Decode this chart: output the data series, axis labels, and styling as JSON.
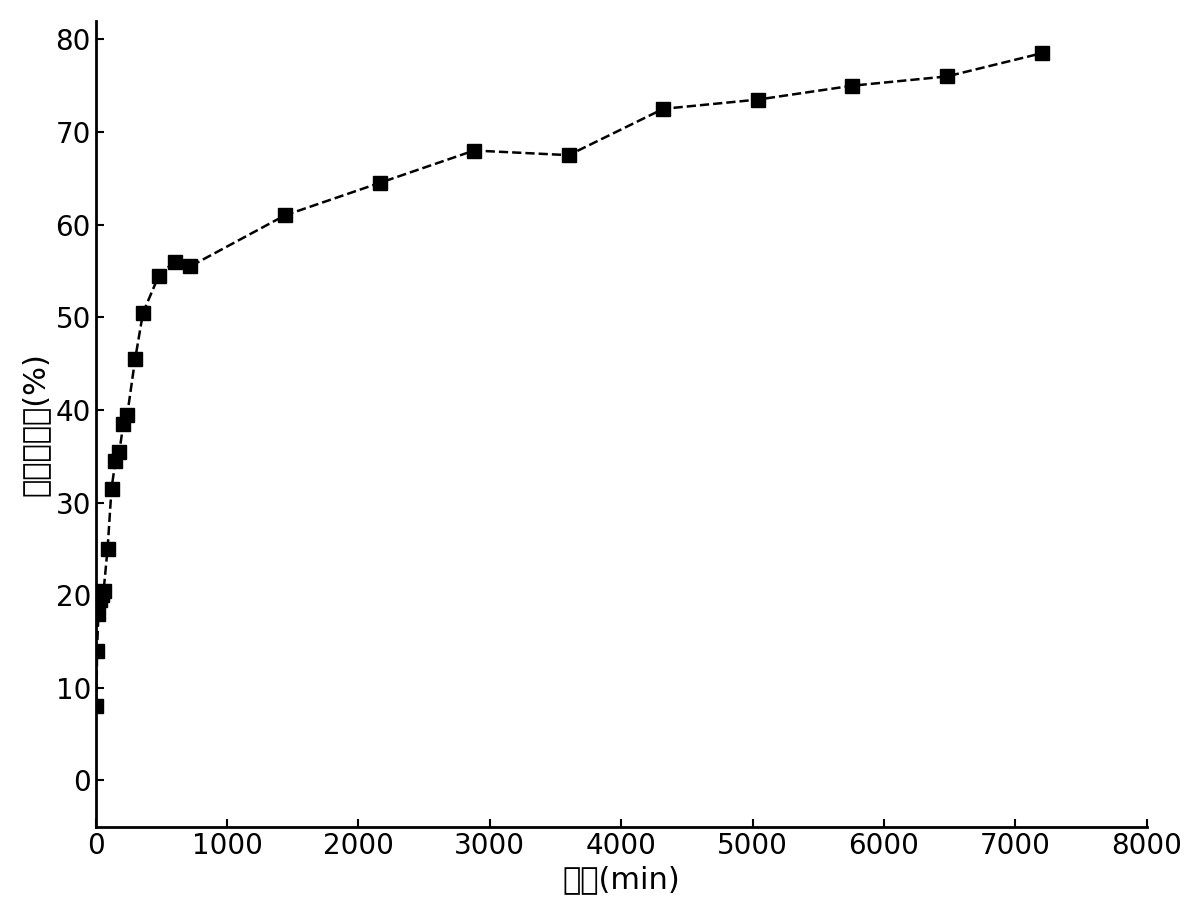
{
  "x": [
    5,
    10,
    20,
    30,
    45,
    60,
    90,
    120,
    150,
    180,
    210,
    240,
    300,
    360,
    480,
    600,
    720,
    1440,
    2160,
    2880,
    3600,
    4320,
    5040,
    5760,
    6480,
    7200
  ],
  "y": [
    8.0,
    14.0,
    18.0,
    19.5,
    20.0,
    20.5,
    25.0,
    31.5,
    34.5,
    35.5,
    38.5,
    39.5,
    45.5,
    50.5,
    54.5,
    56.0,
    55.5,
    61.0,
    64.5,
    68.0,
    67.5,
    72.5,
    73.5,
    75.0,
    76.0,
    78.5
  ],
  "xlabel": "时间(min)",
  "ylabel": "药物释放量(%)",
  "xlim": [
    0,
    8000
  ],
  "ylim": [
    -5,
    82
  ],
  "xticks": [
    0,
    1000,
    2000,
    3000,
    4000,
    5000,
    6000,
    7000,
    8000
  ],
  "yticks": [
    0,
    10,
    20,
    30,
    40,
    50,
    60,
    70,
    80
  ],
  "line_color": "#000000",
  "marker": "s",
  "marker_size": 10,
  "line_style": "--",
  "line_width": 1.8,
  "background_color": "#ffffff",
  "xlabel_fontsize": 22,
  "ylabel_fontsize": 22,
  "tick_fontsize": 20
}
